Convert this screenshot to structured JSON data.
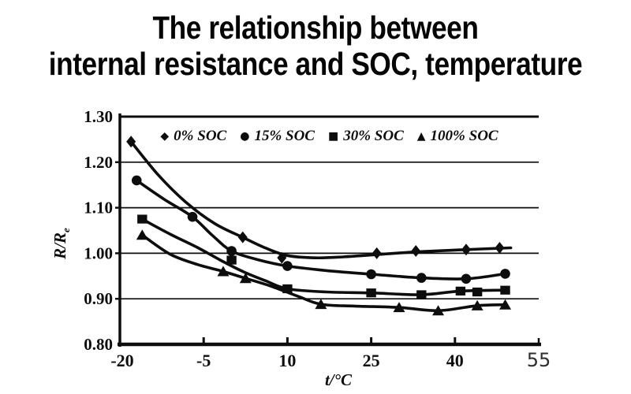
{
  "title": {
    "line1": "The relationship between",
    "line2": "internal resistance and SOC, temperature"
  },
  "colors": {
    "ink": "#0d0d0d",
    "background": "#ffffff",
    "last_xtick": "#2e2e2e"
  },
  "legend": [
    "0% SOC",
    "15% SOC",
    "30% SOC",
    "100% SOC"
  ],
  "chart_data": {
    "type": "line",
    "title": "The relationship between internal resistance and SOC, temperature",
    "xlabel": "t/°C",
    "ylabel": "R/Re",
    "ylabel_main": "R/R",
    "ylabel_sub": "e",
    "xlim": [
      -20,
      55
    ],
    "ylim": [
      0.8,
      1.3
    ],
    "xticks": [
      "-20",
      "-5",
      "10",
      "25",
      "40",
      "55"
    ],
    "yticks": [
      "1.30",
      "1.20",
      "1.10",
      "1.00",
      "0.90",
      "0.80"
    ],
    "grid": "horizontal",
    "legend_position": "top-inside",
    "series": [
      {
        "name": "0% SOC",
        "marker": "diamond",
        "x": [
          -18,
          2,
          9,
          26,
          33,
          42,
          48
        ],
        "y": [
          1.245,
          1.035,
          0.99,
          1.0,
          1.005,
          1.008,
          1.012
        ],
        "curve_x": [
          -18,
          -13,
          -8,
          -3,
          2,
          6,
          10,
          15,
          20,
          26,
          33,
          42,
          50
        ],
        "curve_y": [
          1.245,
          1.17,
          1.11,
          1.065,
          1.035,
          1.012,
          0.995,
          0.99,
          0.992,
          0.997,
          1.003,
          1.008,
          1.012
        ]
      },
      {
        "name": "15% SOC",
        "marker": "circle",
        "x": [
          -17,
          -7,
          0,
          10,
          25,
          34,
          42,
          49
        ],
        "y": [
          1.16,
          1.08,
          1.005,
          0.972,
          0.954,
          0.946,
          0.944,
          0.955
        ],
        "curve_x": [
          -17,
          -12,
          -7,
          -3.5,
          0,
          5,
          10,
          17,
          25,
          34,
          42,
          49
        ],
        "curve_y": [
          1.16,
          1.118,
          1.08,
          1.04,
          1.005,
          0.985,
          0.972,
          0.962,
          0.954,
          0.946,
          0.944,
          0.955
        ]
      },
      {
        "name": "30% SOC",
        "marker": "square",
        "x": [
          -16,
          0,
          10,
          25,
          34,
          41,
          44,
          49
        ],
        "y": [
          1.075,
          0.985,
          0.922,
          0.913,
          0.909,
          0.917,
          0.915,
          0.919
        ],
        "curve_x": [
          -16,
          -11,
          -6,
          -2,
          2,
          6,
          10,
          17,
          25,
          34,
          41,
          49
        ],
        "curve_y": [
          1.075,
          1.042,
          1.012,
          0.985,
          0.96,
          0.94,
          0.922,
          0.915,
          0.913,
          0.909,
          0.917,
          0.919
        ]
      },
      {
        "name": "100% SOC",
        "marker": "triangle",
        "x": [
          -16,
          -1.5,
          2.5,
          16,
          30,
          37,
          44,
          49
        ],
        "y": [
          1.04,
          0.96,
          0.945,
          0.888,
          0.881,
          0.874,
          0.885,
          0.887
        ],
        "curve_x": [
          -16,
          -11,
          -6,
          -1.5,
          2.5,
          7,
          12,
          16,
          22,
          30,
          37,
          44,
          49
        ],
        "curve_y": [
          1.04,
          0.998,
          0.975,
          0.96,
          0.945,
          0.928,
          0.905,
          0.888,
          0.884,
          0.881,
          0.874,
          0.885,
          0.887
        ]
      }
    ]
  }
}
